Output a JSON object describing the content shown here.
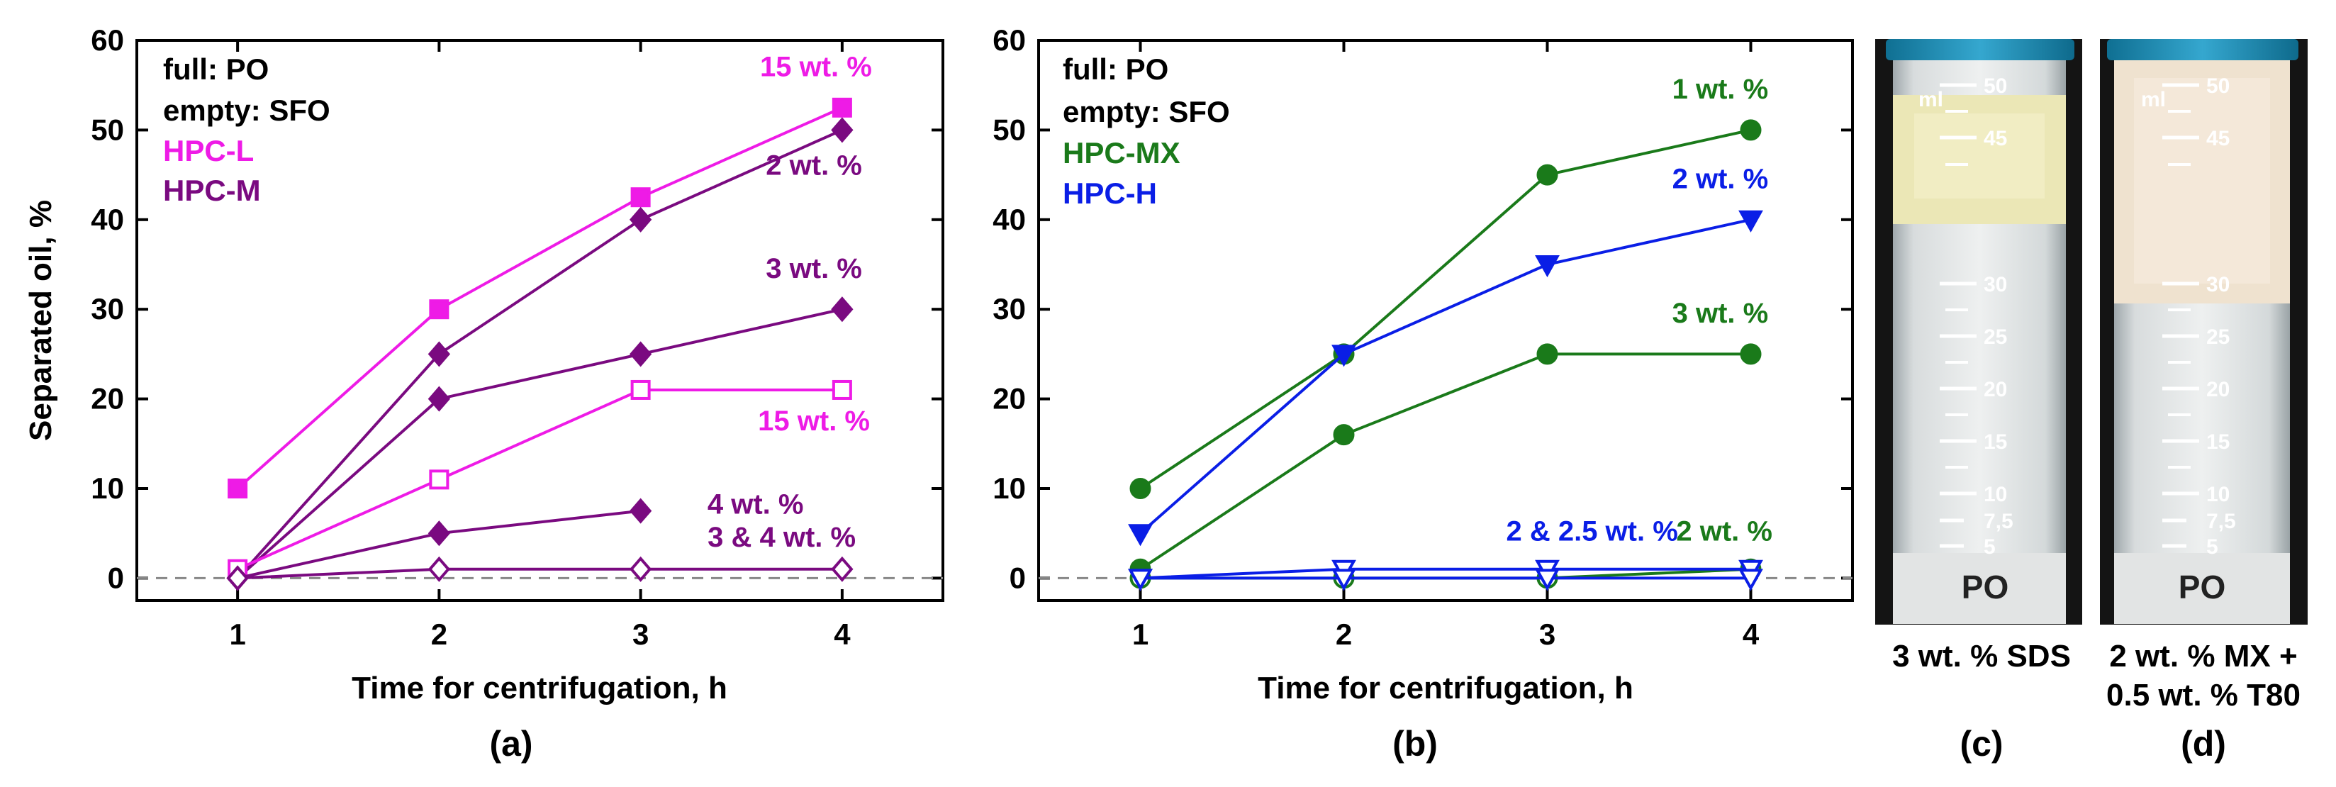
{
  "chart_data": [
    {
      "type": "line",
      "panel_label": "(a)",
      "xlabel": "Time for centrifugation, h",
      "ylabel": "Separated oil, %",
      "x": [
        1,
        2,
        3,
        4
      ],
      "xlim": [
        0.5,
        4.5
      ],
      "ylim": [
        -2.5,
        60
      ],
      "yticks": [
        0,
        10,
        20,
        30,
        40,
        50,
        60
      ],
      "reference_line_y": 0,
      "legend": [
        {
          "text": "full: PO",
          "color": "#000000"
        },
        {
          "text": "empty: SFO",
          "color": "#000000"
        },
        {
          "text": "HPC-L",
          "color": "#ee1be6"
        },
        {
          "text": "HPC-M",
          "color": "#7a0a80"
        }
      ],
      "series": [
        {
          "name": "HPC-L 15 wt. % PO",
          "color": "#ee1be6",
          "marker": "square",
          "filled": true,
          "x": [
            1,
            2,
            3,
            4
          ],
          "y": [
            10,
            30,
            42.5,
            52.5
          ]
        },
        {
          "name": "HPC-M 2 wt. % PO",
          "color": "#7a0a80",
          "marker": "diamond",
          "filled": true,
          "x": [
            1,
            2,
            3,
            4
          ],
          "y": [
            0,
            25,
            40,
            50
          ]
        },
        {
          "name": "HPC-M 3 wt. % PO",
          "color": "#7a0a80",
          "marker": "diamond",
          "filled": true,
          "x": [
            1,
            2,
            3,
            4
          ],
          "y": [
            0,
            20,
            25,
            30
          ]
        },
        {
          "name": "HPC-L 15 wt. % SFO",
          "color": "#ee1be6",
          "marker": "square",
          "filled": false,
          "x": [
            1,
            2,
            3,
            4
          ],
          "y": [
            1,
            11,
            21,
            21
          ]
        },
        {
          "name": "HPC-M 4 wt. % PO",
          "color": "#7a0a80",
          "marker": "diamond",
          "filled": true,
          "x": [
            1,
            2,
            3
          ],
          "y": [
            0,
            5,
            7.5
          ]
        },
        {
          "name": "HPC-M 3 & 4 wt. % SFO",
          "color": "#7a0a80",
          "marker": "diamond",
          "filled": false,
          "x": [
            1,
            2,
            3,
            4
          ],
          "y": [
            0,
            1,
            1,
            1
          ]
        }
      ],
      "annotations": [
        {
          "text": "15 wt. %",
          "color": "#ee1be6",
          "x": 3.87,
          "y": 56
        },
        {
          "text": "2 wt. %",
          "color": "#7a0a80",
          "x": 3.86,
          "y": 45
        },
        {
          "text": "3 wt. %",
          "color": "#7a0a80",
          "x": 3.86,
          "y": 33.5
        },
        {
          "text": "15 wt. %",
          "color": "#ee1be6",
          "x": 3.86,
          "y": 16.5
        },
        {
          "text": "4 wt. %",
          "color": "#7a0a80",
          "x": 3.57,
          "y": 7.2
        },
        {
          "text": "3 & 4 wt. %",
          "color": "#7a0a80",
          "x": 3.7,
          "y": 3.5
        }
      ]
    },
    {
      "type": "line",
      "panel_label": "(b)",
      "xlabel": "Time for centrifugation, h",
      "ylabel": "",
      "x": [
        1,
        2,
        3,
        4
      ],
      "xlim": [
        0.5,
        4.5
      ],
      "ylim": [
        -2.5,
        60
      ],
      "yticks": [
        0,
        10,
        20,
        30,
        40,
        50,
        60
      ],
      "reference_line_y": 0,
      "legend": [
        {
          "text": "full: PO",
          "color": "#000000"
        },
        {
          "text": "empty: SFO",
          "color": "#000000"
        },
        {
          "text": "HPC-MX",
          "color": "#1a7a1a"
        },
        {
          "text": "HPC-H",
          "color": "#0a1ee6"
        }
      ],
      "series": [
        {
          "name": "HPC-MX 1 wt. % PO",
          "color": "#1a7a1a",
          "marker": "circle",
          "filled": true,
          "x": [
            1,
            2,
            3,
            4
          ],
          "y": [
            10,
            25,
            45,
            50
          ]
        },
        {
          "name": "HPC-H 2 wt. % PO",
          "color": "#0a1ee6",
          "marker": "triangle-down",
          "filled": true,
          "x": [
            1,
            2,
            3,
            4
          ],
          "y": [
            5,
            25,
            35,
            40
          ]
        },
        {
          "name": "HPC-MX 3 wt. % PO",
          "color": "#1a7a1a",
          "marker": "circle",
          "filled": true,
          "x": [
            1,
            2,
            3,
            4
          ],
          "y": [
            1,
            16,
            25,
            25
          ]
        },
        {
          "name": "HPC-MX 2 wt. % SFO",
          "color": "#1a7a1a",
          "marker": "circle",
          "filled": false,
          "x": [
            1,
            2,
            3,
            4
          ],
          "y": [
            0,
            0,
            0,
            1
          ]
        },
        {
          "name": "HPC-H 2 & 2.5 wt. % SFO (a)",
          "color": "#0a1ee6",
          "marker": "triangle-down",
          "filled": false,
          "x": [
            1,
            2,
            3,
            4
          ],
          "y": [
            0,
            1,
            1,
            1
          ]
        },
        {
          "name": "HPC-H 2 & 2.5 wt. % SFO (b)",
          "color": "#0a1ee6",
          "marker": "triangle-down",
          "filled": false,
          "x": [
            1,
            2,
            3,
            4
          ],
          "y": [
            0,
            0,
            0,
            0
          ]
        }
      ],
      "annotations": [
        {
          "text": "1 wt. %",
          "color": "#1a7a1a",
          "x": 3.85,
          "y": 53.5
        },
        {
          "text": "2 wt. %",
          "color": "#0a1ee6",
          "x": 3.85,
          "y": 43.5
        },
        {
          "text": "3 wt. %",
          "color": "#1a7a1a",
          "x": 3.85,
          "y": 28.5
        },
        {
          "text": "2 & 2.5 wt. %",
          "color": "#0a1ee6",
          "x": 3.22,
          "y": 4.2
        },
        {
          "text": "2 wt. %",
          "color": "#1a7a1a",
          "x": 3.87,
          "y": 4.2
        }
      ]
    }
  ],
  "photos": [
    {
      "panel_label": "(c)",
      "caption_lines": [
        "3 wt. % SDS"
      ],
      "tube_label": "PO",
      "unit_label": "ml",
      "graduations": [
        "50",
        "45",
        "30",
        "25",
        "20",
        "15",
        "10",
        "7,5",
        "5"
      ]
    },
    {
      "panel_label": "(d)",
      "caption_lines": [
        "2 wt. % MX +",
        "0.5 wt. % T80"
      ],
      "tube_label": "PO",
      "unit_label": "ml",
      "graduations": [
        "50",
        "45",
        "30",
        "25",
        "20",
        "15",
        "10",
        "7,5",
        "5"
      ]
    }
  ],
  "colors": {
    "hpc_l": "#ee1be6",
    "hpc_m": "#7a0a80",
    "hpc_mx": "#1a7a1a",
    "hpc_h": "#0a1ee6",
    "photo_background": "#161616"
  }
}
